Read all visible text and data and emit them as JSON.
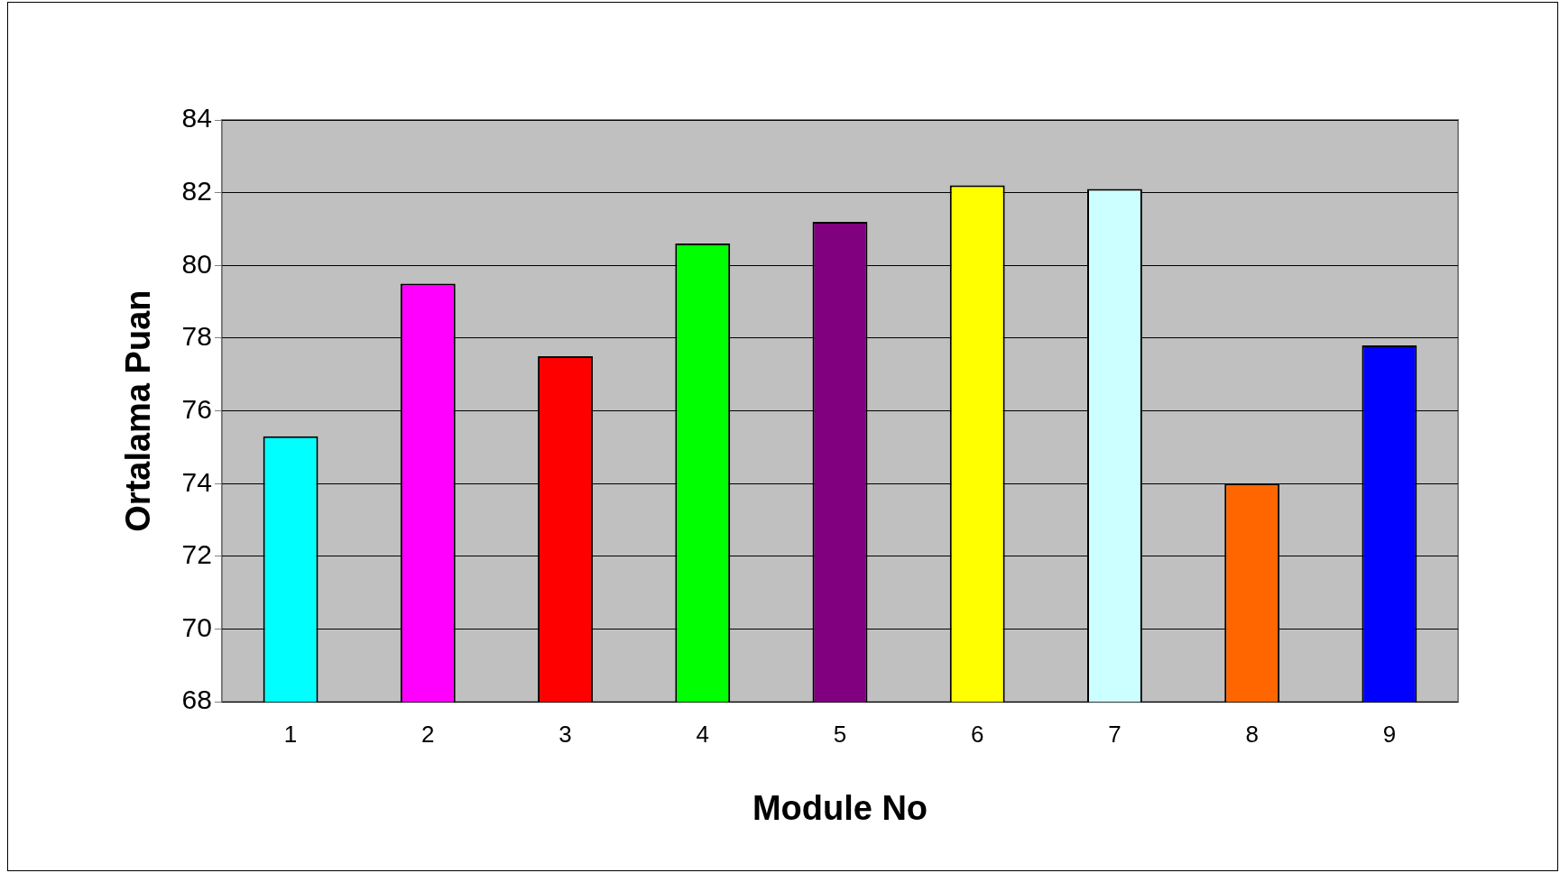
{
  "chart_data": {
    "type": "bar",
    "xlabel": "Module No",
    "ylabel": "Ortalama Puan",
    "categories": [
      "1",
      "2",
      "3",
      "4",
      "5",
      "6",
      "7",
      "8",
      "9"
    ],
    "values": [
      75.3,
      79.5,
      77.5,
      80.6,
      81.2,
      82.2,
      82.1,
      74.0,
      77.8
    ],
    "colors": [
      "#00ffff",
      "#ff00ff",
      "#ff0000",
      "#00ff00",
      "#800080",
      "#ffff00",
      "#ccffff",
      "#ff6600",
      "#0000ff"
    ],
    "ylim": [
      68,
      84
    ],
    "yticks": [
      68,
      70,
      72,
      74,
      76,
      78,
      80,
      82,
      84
    ],
    "grid": "y"
  }
}
